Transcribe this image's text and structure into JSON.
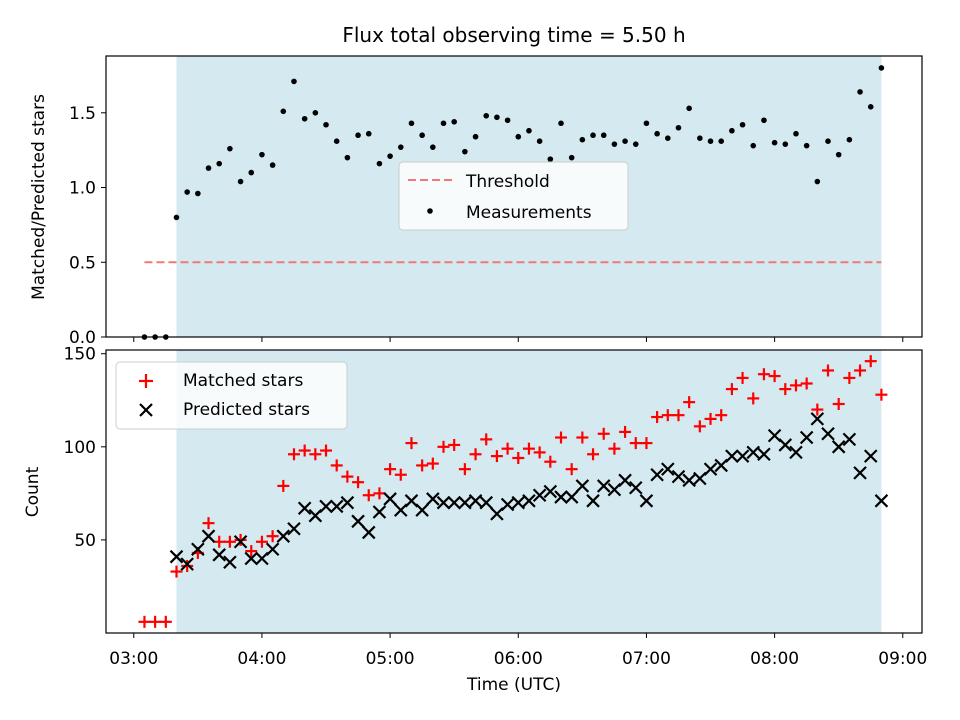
{
  "chart_data": [
    {
      "type": "scatter",
      "title": "Flux total observing time = 5.50 h",
      "ylabel": "Matched/Predicted stars",
      "xlabel": "",
      "ylim": [
        0,
        1.88
      ],
      "yticks": [
        0.0,
        0.5,
        1.0,
        1.5
      ],
      "ytick_labels": [
        "0.0",
        "0.5",
        "1.0",
        "1.5"
      ],
      "shaded_region": {
        "x_start": "03:20",
        "x_end": "08:50",
        "color": "#d4eaf0"
      },
      "legend": {
        "position": "center",
        "entries": [
          "Threshold",
          "Measurements"
        ]
      },
      "threshold": {
        "name": "Threshold",
        "value": 0.5,
        "x_start": "03:05",
        "x_end": "08:50",
        "color": "#f27878"
      },
      "series": [
        {
          "name": "Measurements",
          "color": "#000000",
          "x": [
            "03:05",
            "03:10",
            "03:15",
            "03:20",
            "03:25",
            "03:30",
            "03:35",
            "03:40",
            "03:45",
            "03:50",
            "03:55",
            "04:00",
            "04:05",
            "04:10",
            "04:15",
            "04:20",
            "04:25",
            "04:30",
            "04:35",
            "04:40",
            "04:45",
            "04:50",
            "04:55",
            "05:00",
            "05:05",
            "05:10",
            "05:15",
            "05:20",
            "05:25",
            "05:30",
            "05:35",
            "05:40",
            "05:45",
            "05:50",
            "05:55",
            "06:00",
            "06:05",
            "06:10",
            "06:15",
            "06:20",
            "06:25",
            "06:30",
            "06:35",
            "06:40",
            "06:45",
            "06:50",
            "06:55",
            "07:00",
            "07:05",
            "07:10",
            "07:15",
            "07:20",
            "07:25",
            "07:30",
            "07:35",
            "07:40",
            "07:45",
            "07:50",
            "07:55",
            "08:00",
            "08:05",
            "08:10",
            "08:15",
            "08:20",
            "08:25",
            "08:30",
            "08:35",
            "08:40",
            "08:45",
            "08:50"
          ],
          "y": [
            0.0,
            0.0,
            0.0,
            0.8,
            0.97,
            0.96,
            1.13,
            1.16,
            1.26,
            1.04,
            1.1,
            1.22,
            1.15,
            1.51,
            1.71,
            1.46,
            1.5,
            1.42,
            1.31,
            1.2,
            1.35,
            1.36,
            1.16,
            1.21,
            1.27,
            1.43,
            1.35,
            1.27,
            1.43,
            1.44,
            1.24,
            1.34,
            1.48,
            1.47,
            1.45,
            1.34,
            1.38,
            1.31,
            1.19,
            1.43,
            1.2,
            1.32,
            1.35,
            1.35,
            1.29,
            1.31,
            1.29,
            1.43,
            1.36,
            1.33,
            1.4,
            1.53,
            1.33,
            1.31,
            1.31,
            1.38,
            1.42,
            1.28,
            1.45,
            1.3,
            1.29,
            1.36,
            1.28,
            1.04,
            1.31,
            1.22,
            1.32,
            1.64,
            1.54,
            1.8
          ]
        }
      ]
    },
    {
      "type": "scatter",
      "title": "",
      "ylabel": "Count",
      "xlabel": "Time (UTC)",
      "ylim": [
        0,
        152
      ],
      "yticks": [
        50,
        100,
        150
      ],
      "ytick_labels": [
        "50",
        "100",
        "150"
      ],
      "xticks": [
        "03:00",
        "04:00",
        "05:00",
        "06:00",
        "07:00",
        "08:00",
        "09:00"
      ],
      "xtick_labels": [
        "03:00",
        "04:00",
        "05:00",
        "06:00",
        "07:00",
        "08:00",
        "09:00"
      ],
      "shaded_region": {
        "x_start": "03:20",
        "x_end": "08:50",
        "color": "#d4eaf0"
      },
      "legend": {
        "position": "top-left",
        "entries": [
          "Matched stars",
          "Predicted stars"
        ]
      },
      "series": [
        {
          "name": "Matched stars",
          "marker": "plus",
          "color": "#ff0000",
          "x": [
            "03:05",
            "03:10",
            "03:15",
            "03:20",
            "03:25",
            "03:30",
            "03:35",
            "03:40",
            "03:45",
            "03:50",
            "03:55",
            "04:00",
            "04:05",
            "04:10",
            "04:15",
            "04:20",
            "04:25",
            "04:30",
            "04:35",
            "04:40",
            "04:45",
            "04:50",
            "04:55",
            "05:00",
            "05:05",
            "05:10",
            "05:15",
            "05:20",
            "05:25",
            "05:30",
            "05:35",
            "05:40",
            "05:45",
            "05:50",
            "05:55",
            "06:00",
            "06:05",
            "06:10",
            "06:15",
            "06:20",
            "06:25",
            "06:30",
            "06:35",
            "06:40",
            "06:45",
            "06:50",
            "06:55",
            "07:00",
            "07:05",
            "07:10",
            "07:15",
            "07:20",
            "07:25",
            "07:30",
            "07:35",
            "07:40",
            "07:45",
            "07:50",
            "07:55",
            "08:00",
            "08:05",
            "08:10",
            "08:15",
            "08:20",
            "08:25",
            "08:30",
            "08:35",
            "08:40",
            "08:45",
            "08:50"
          ],
          "y": [
            6,
            6,
            6,
            33,
            36,
            43,
            59,
            49,
            49,
            50,
            44,
            49,
            52,
            79,
            96,
            98,
            96,
            98,
            90,
            84,
            81,
            74,
            75,
            88,
            85,
            102,
            90,
            91,
            100,
            101,
            88,
            96,
            104,
            95,
            99,
            94,
            99,
            97,
            92,
            105,
            88,
            105,
            96,
            107,
            99,
            108,
            102,
            102,
            116,
            117,
            117,
            124,
            111,
            115,
            117,
            131,
            137,
            126,
            139,
            138,
            131,
            133,
            134,
            120,
            141,
            123,
            137,
            141,
            146,
            128
          ]
        },
        {
          "name": "Predicted stars",
          "marker": "x",
          "color": "#000000",
          "x": [
            "03:20",
            "03:25",
            "03:30",
            "03:35",
            "03:40",
            "03:45",
            "03:50",
            "03:55",
            "04:00",
            "04:05",
            "04:10",
            "04:15",
            "04:20",
            "04:25",
            "04:30",
            "04:35",
            "04:40",
            "04:45",
            "04:50",
            "04:55",
            "05:00",
            "05:05",
            "05:10",
            "05:15",
            "05:20",
            "05:25",
            "05:30",
            "05:35",
            "05:40",
            "05:45",
            "05:50",
            "05:55",
            "06:00",
            "06:05",
            "06:10",
            "06:15",
            "06:20",
            "06:25",
            "06:30",
            "06:35",
            "06:40",
            "06:45",
            "06:50",
            "06:55",
            "07:00",
            "07:05",
            "07:10",
            "07:15",
            "07:20",
            "07:25",
            "07:30",
            "07:35",
            "07:40",
            "07:45",
            "07:50",
            "07:55",
            "08:00",
            "08:05",
            "08:10",
            "08:15",
            "08:20",
            "08:25",
            "08:30",
            "08:35",
            "08:40",
            "08:45",
            "08:50"
          ],
          "y": [
            41,
            37,
            45,
            52,
            42,
            38,
            49,
            40,
            40,
            45,
            52,
            56,
            67,
            63,
            68,
            68,
            70,
            60,
            54,
            65,
            72,
            66,
            71,
            66,
            72,
            70,
            70,
            70,
            71,
            70,
            64,
            69,
            70,
            71,
            74,
            76,
            73,
            73,
            79,
            71,
            79,
            77,
            82,
            78,
            71,
            85,
            88,
            84,
            82,
            83,
            88,
            90,
            95,
            95,
            97,
            96,
            106,
            101,
            97,
            105,
            115,
            107,
            100,
            104,
            86,
            95,
            71
          ]
        }
      ]
    }
  ]
}
